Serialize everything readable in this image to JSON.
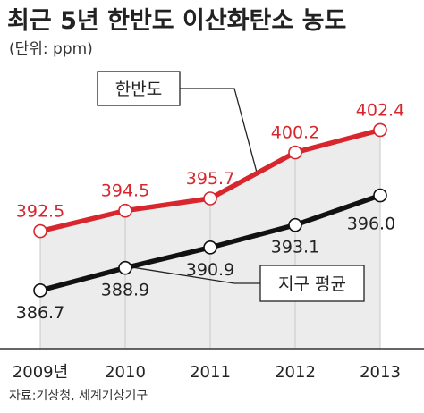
{
  "title": "최근 5년 한반도 이산화탄소 농도",
  "unit_label": "(단위: ppm)",
  "source": "자료:기상청, 세계기상기구",
  "colors": {
    "korea": "#d7262e",
    "global": "#111111",
    "area": "#ececec"
  },
  "chart_data": {
    "type": "line",
    "categories": [
      "2009년",
      "2010",
      "2011",
      "2012",
      "2013"
    ],
    "ylim": [
      381,
      409
    ],
    "series": [
      {
        "name": "한반도",
        "values": [
          392.5,
          394.5,
          395.7,
          400.2,
          402.4
        ],
        "labels": [
          "392.5",
          "394.5",
          "395.7",
          "400.2",
          "402.4"
        ]
      },
      {
        "name": "지구 평균",
        "values": [
          386.7,
          388.9,
          390.9,
          393.1,
          396.0
        ],
        "labels": [
          "386.7",
          "388.9",
          "390.9",
          "393.1",
          "396.0"
        ]
      }
    ]
  }
}
